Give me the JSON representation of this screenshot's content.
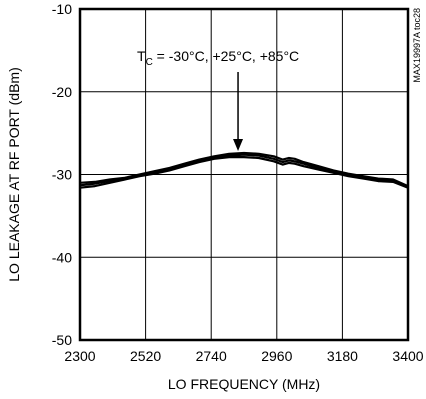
{
  "chart_data": {
    "type": "line",
    "xlabel": "LO FREQUENCY (MHz)",
    "ylabel": "LO LEAKAGE AT RF PORT (dBm)",
    "xlim": [
      2300,
      3400
    ],
    "ylim": [
      -50,
      -10
    ],
    "xticks": [
      2300,
      2520,
      2740,
      2960,
      3180,
      3400
    ],
    "yticks": [
      -10,
      -20,
      -30,
      -40,
      -50
    ],
    "grid": true,
    "annotation": {
      "main": "T",
      "sub": "C",
      "rest": " = -30°C, +25°C, +85°C",
      "arrow_to": {
        "x": 2830,
        "y": -27.4
      }
    },
    "watermark": "MAX19997A toc28",
    "series": [
      {
        "x": [
          2300,
          2350,
          2400,
          2450,
          2500,
          2550,
          2600,
          2650,
          2700,
          2750,
          2800,
          2850,
          2900,
          2950,
          2980,
          3000,
          3020,
          3050,
          3100,
          3150,
          3200,
          3250,
          3300,
          3350,
          3400
        ],
        "values": [
          -31.0,
          -30.9,
          -30.6,
          -30.4,
          -30.0,
          -29.6,
          -29.2,
          -28.7,
          -28.2,
          -27.8,
          -27.5,
          -27.4,
          -27.5,
          -27.8,
          -28.2,
          -28.0,
          -28.1,
          -28.5,
          -29.0,
          -29.5,
          -29.9,
          -30.2,
          -30.5,
          -30.6,
          -31.4
        ]
      },
      {
        "x": [
          2300,
          2350,
          2400,
          2450,
          2500,
          2550,
          2600,
          2650,
          2700,
          2750,
          2800,
          2850,
          2900,
          2950,
          2980,
          3000,
          3020,
          3050,
          3100,
          3150,
          3200,
          3250,
          3300,
          3350,
          3400
        ],
        "values": [
          -31.3,
          -31.1,
          -30.8,
          -30.5,
          -30.1,
          -29.7,
          -29.3,
          -28.8,
          -28.3,
          -27.9,
          -27.7,
          -27.6,
          -27.7,
          -28.1,
          -28.5,
          -28.3,
          -28.4,
          -28.7,
          -29.2,
          -29.7,
          -30.1,
          -30.4,
          -30.7,
          -30.8,
          -31.5
        ]
      },
      {
        "x": [
          2300,
          2350,
          2400,
          2450,
          2500,
          2550,
          2600,
          2650,
          2700,
          2750,
          2800,
          2850,
          2900,
          2950,
          2980,
          3000,
          3020,
          3050,
          3100,
          3150,
          3200,
          3250,
          3300,
          3350,
          3400
        ],
        "values": [
          -31.6,
          -31.4,
          -31.0,
          -30.6,
          -30.2,
          -29.9,
          -29.5,
          -29.0,
          -28.5,
          -28.1,
          -27.9,
          -27.9,
          -28.0,
          -28.4,
          -28.8,
          -28.6,
          -28.7,
          -29.0,
          -29.4,
          -29.8,
          -30.2,
          -30.5,
          -30.8,
          -30.9,
          -31.6
        ]
      }
    ]
  }
}
